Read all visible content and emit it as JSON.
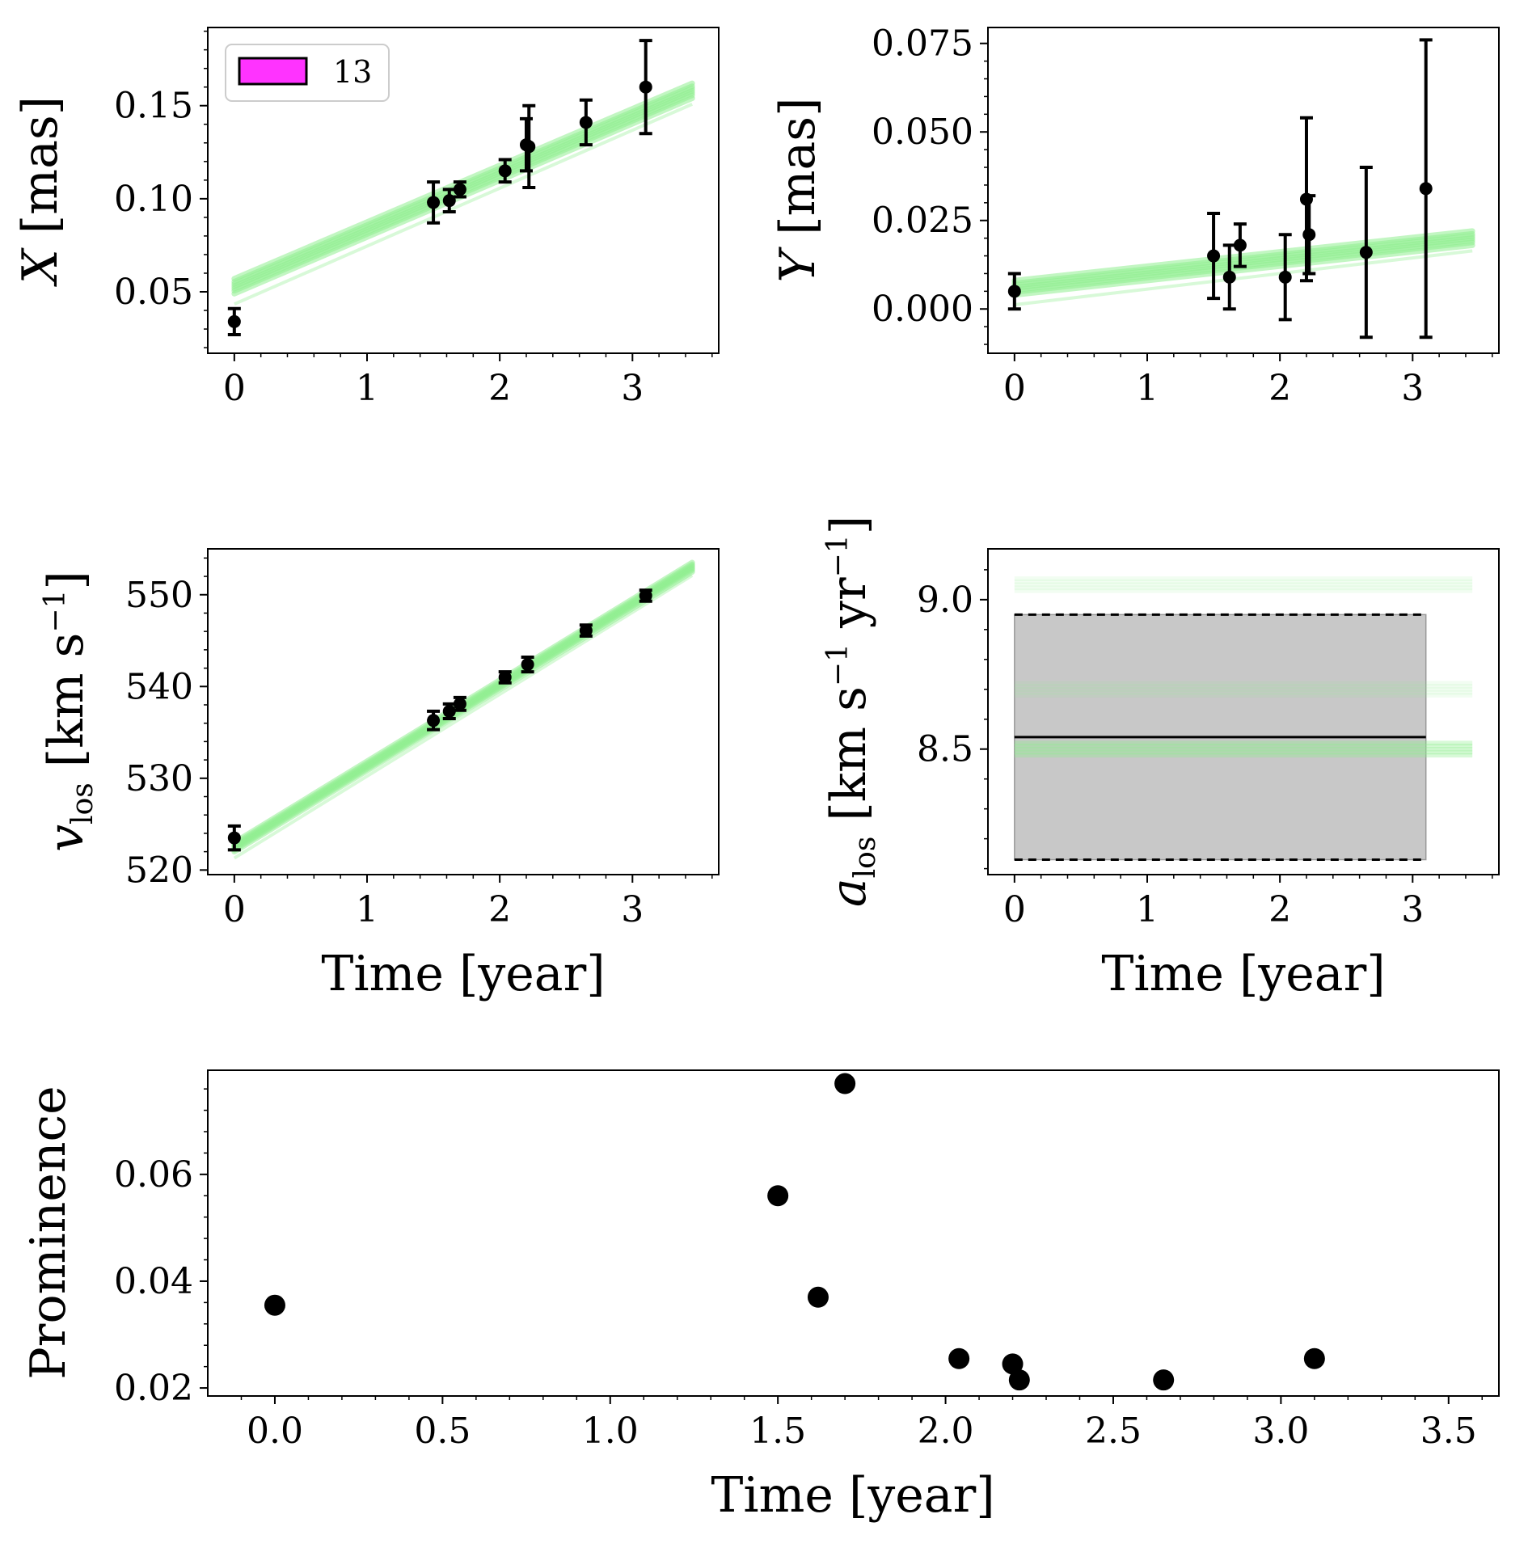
{
  "figure": {
    "xlabel": "Time [year]",
    "legend_label": "13",
    "colors": {
      "band": "#90ee90",
      "data": "#000000",
      "legend_patch": "#ff33ff",
      "shade": "#c8c8c8"
    }
  },
  "chart_data": [
    {
      "id": "X",
      "type": "scatter",
      "ylabel_var": "X",
      "ylabel_unit": "[mas]",
      "xlim": [
        -0.2,
        3.65
      ],
      "ylim": [
        0.017,
        0.192
      ],
      "xticks": [
        "0",
        "1",
        "2",
        "3"
      ],
      "xtick_values": [
        0,
        1,
        2,
        3
      ],
      "yticks": [
        "0.05",
        "0.10",
        "0.15"
      ],
      "ytick_values": [
        0.05,
        0.1,
        0.15
      ],
      "points": [
        {
          "x": 0.0,
          "y": 0.034,
          "err": 0.007
        },
        {
          "x": 1.5,
          "y": 0.098,
          "err": 0.011
        },
        {
          "x": 1.62,
          "y": 0.099,
          "err": 0.006
        },
        {
          "x": 1.7,
          "y": 0.105,
          "err": 0.004
        },
        {
          "x": 2.04,
          "y": 0.115,
          "err": 0.006
        },
        {
          "x": 2.2,
          "y": 0.129,
          "err": 0.014
        },
        {
          "x": 2.22,
          "y": 0.128,
          "err": 0.022
        },
        {
          "x": 2.65,
          "y": 0.141,
          "err": 0.012
        },
        {
          "x": 3.1,
          "y": 0.16,
          "err": 0.025
        }
      ],
      "band": {
        "x0": 0.0,
        "x1": 3.45,
        "y0": 0.053,
        "y1": 0.158,
        "width": 0.008
      }
    },
    {
      "id": "Y",
      "type": "scatter",
      "ylabel_var": "Y",
      "ylabel_unit": "[mas]",
      "xlim": [
        -0.2,
        3.65
      ],
      "ylim": [
        -0.0125,
        0.0795
      ],
      "xticks": [
        "0",
        "1",
        "2",
        "3"
      ],
      "xtick_values": [
        0,
        1,
        2,
        3
      ],
      "yticks": [
        "0.000",
        "0.025",
        "0.050",
        "0.075"
      ],
      "ytick_values": [
        0.0,
        0.025,
        0.05,
        0.075
      ],
      "points": [
        {
          "x": 0.0,
          "y": 0.005,
          "err": 0.005
        },
        {
          "x": 1.5,
          "y": 0.015,
          "err": 0.012
        },
        {
          "x": 1.62,
          "y": 0.009,
          "err": 0.009
        },
        {
          "x": 1.7,
          "y": 0.018,
          "err": 0.006
        },
        {
          "x": 2.04,
          "y": 0.009,
          "err": 0.012
        },
        {
          "x": 2.2,
          "y": 0.031,
          "err": 0.023
        },
        {
          "x": 2.22,
          "y": 0.021,
          "err": 0.011
        },
        {
          "x": 2.65,
          "y": 0.016,
          "err": 0.024
        },
        {
          "x": 3.1,
          "y": 0.034,
          "err": 0.042
        }
      ],
      "band": {
        "x0": 0.0,
        "x1": 3.45,
        "y0": 0.006,
        "y1": 0.02,
        "width": 0.004
      }
    },
    {
      "id": "vlos",
      "type": "scatter",
      "ylabel_var": "v",
      "ylabel_sub": "los",
      "ylabel_unit": "[km s",
      "ylabel_exp": "−1",
      "ylabel_close": "]",
      "xlim": [
        -0.2,
        3.65
      ],
      "ylim": [
        519.5,
        555
      ],
      "xticks": [
        "0",
        "1",
        "2",
        "3"
      ],
      "xtick_values": [
        0,
        1,
        2,
        3
      ],
      "yticks": [
        "520",
        "530",
        "540",
        "550"
      ],
      "ytick_values": [
        520,
        530,
        540,
        550
      ],
      "points": [
        {
          "x": 0.0,
          "y": 523.5,
          "err": 1.3
        },
        {
          "x": 1.5,
          "y": 536.3,
          "err": 1.0
        },
        {
          "x": 1.62,
          "y": 537.3,
          "err": 0.8
        },
        {
          "x": 1.7,
          "y": 538.1,
          "err": 0.7
        },
        {
          "x": 2.04,
          "y": 541.0,
          "err": 0.6
        },
        {
          "x": 2.21,
          "y": 542.4,
          "err": 0.8
        },
        {
          "x": 2.65,
          "y": 546.1,
          "err": 0.6
        },
        {
          "x": 3.1,
          "y": 549.9,
          "err": 0.6
        }
      ],
      "band": {
        "x0": 0.0,
        "x1": 3.45,
        "y0": 522.5,
        "y1": 553.0,
        "width": 1.0
      }
    },
    {
      "id": "alos",
      "type": "line",
      "ylabel_var": "a",
      "ylabel_sub": "los",
      "ylabel_unit": "[km s",
      "ylabel_exp1": "−1",
      "ylabel_mid": " yr",
      "ylabel_exp2": "−1",
      "ylabel_close": "]",
      "xlim": [
        -0.2,
        3.65
      ],
      "ylim": [
        8.08,
        9.17
      ],
      "xticks": [
        "0",
        "1",
        "2",
        "3"
      ],
      "xtick_values": [
        0,
        1,
        2,
        3
      ],
      "yticks": [
        "8.5",
        "9.0"
      ],
      "ytick_values": [
        8.5,
        9.0
      ],
      "mean": 8.54,
      "lower": 8.13,
      "upper": 8.95,
      "shade_x": [
        0.0,
        3.1
      ],
      "band_levels": [
        8.5,
        8.7,
        9.05
      ],
      "band_x": [
        0.0,
        3.45
      ]
    },
    {
      "id": "prominence",
      "type": "scatter",
      "ylabel": "Prominence",
      "xlim": [
        -0.2,
        3.65
      ],
      "ylim": [
        0.0185,
        0.0795
      ],
      "xticks": [
        "0.0",
        "0.5",
        "1.0",
        "1.5",
        "2.0",
        "2.5",
        "3.0",
        "3.5"
      ],
      "xtick_values": [
        0.0,
        0.5,
        1.0,
        1.5,
        2.0,
        2.5,
        3.0,
        3.5
      ],
      "yticks": [
        "0.02",
        "0.04",
        "0.06"
      ],
      "ytick_values": [
        0.02,
        0.04,
        0.06
      ],
      "points": [
        {
          "x": 0.0,
          "y": 0.0355
        },
        {
          "x": 1.5,
          "y": 0.056
        },
        {
          "x": 1.62,
          "y": 0.037
        },
        {
          "x": 1.7,
          "y": 0.077
        },
        {
          "x": 2.04,
          "y": 0.0255
        },
        {
          "x": 2.2,
          "y": 0.0245
        },
        {
          "x": 2.22,
          "y": 0.0215
        },
        {
          "x": 2.65,
          "y": 0.0215
        },
        {
          "x": 3.1,
          "y": 0.0255
        }
      ]
    }
  ]
}
